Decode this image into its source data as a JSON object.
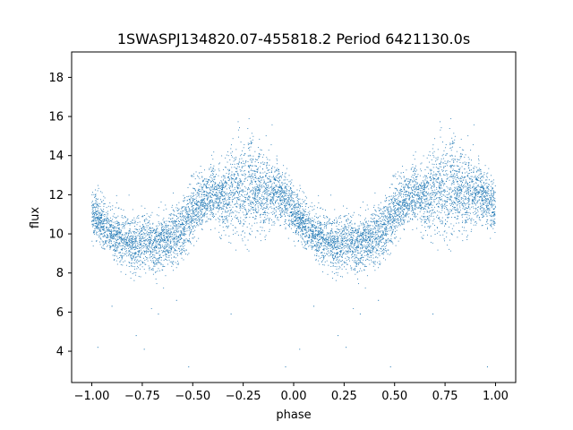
{
  "chart_data": {
    "type": "scatter",
    "title": "1SWASPJ134820.07-455818.2 Period 6421130.0s",
    "xlabel": "phase",
    "ylabel": "flux",
    "xlim": [
      -1.1,
      1.1
    ],
    "ylim": [
      2.4,
      19.3
    ],
    "x_ticks": [
      -1.0,
      -0.75,
      -0.5,
      -0.25,
      0.0,
      0.25,
      0.5,
      0.75,
      1.0
    ],
    "x_tick_labels": [
      "−1.00",
      "−0.75",
      "−0.50",
      "−0.25",
      "0.00",
      "0.25",
      "0.50",
      "0.75",
      "1.00"
    ],
    "y_ticks": [
      4,
      6,
      8,
      10,
      12,
      14,
      16,
      18
    ],
    "y_tick_labels": [
      "4",
      "6",
      "8",
      "10",
      "12",
      "14",
      "16",
      "18"
    ],
    "grid": false,
    "legend": "none",
    "marker_color": "#1f77b4",
    "phase_profile": {
      "phase": [
        0.0,
        0.05,
        0.1,
        0.15,
        0.2,
        0.25,
        0.3,
        0.35,
        0.4,
        0.45,
        0.5,
        0.55,
        0.6,
        0.65,
        0.7,
        0.75,
        0.8,
        0.85,
        0.9,
        0.95,
        1.0
      ],
      "median_flux": [
        11.0,
        10.5,
        10.0,
        9.7,
        9.5,
        9.6,
        9.4,
        9.5,
        9.8,
        10.2,
        11.2,
        11.6,
        12.1,
        11.8,
        12.3,
        12.5,
        12.3,
        12.1,
        12.2,
        11.8,
        11.3
      ],
      "spread": [
        0.8,
        0.8,
        0.8,
        0.9,
        0.9,
        0.9,
        0.9,
        0.9,
        0.9,
        1.0,
        1.0,
        0.9,
        1.0,
        1.0,
        1.4,
        1.6,
        1.6,
        1.4,
        1.0,
        0.9,
        0.8
      ]
    },
    "series": [
      {
        "x": [
          -1.0,
          -0.95,
          -0.9,
          -0.85,
          -0.8,
          -0.75,
          -0.7,
          -0.65,
          -0.6,
          -0.55,
          -0.5,
          -0.45,
          -0.4,
          -0.35,
          -0.3,
          -0.25,
          -0.2,
          -0.15,
          -0.1,
          -0.05,
          0.0,
          0.05,
          0.1,
          0.15,
          0.2,
          0.25,
          0.3,
          0.35,
          0.4,
          0.45,
          0.5,
          0.55,
          0.6,
          0.65,
          0.7,
          0.75,
          0.8,
          0.85,
          0.9,
          0.95,
          1.0
        ],
        "y": [
          11.3,
          11.0,
          10.5,
          10.0,
          9.7,
          9.5,
          9.6,
          9.4,
          9.5,
          9.8,
          10.2,
          11.2,
          11.6,
          12.1,
          11.8,
          12.3,
          12.5,
          12.3,
          12.1,
          12.2,
          11.8,
          11.0,
          10.5,
          10.0,
          9.7,
          9.5,
          9.6,
          9.4,
          9.5,
          9.8,
          10.2,
          11.2,
          11.6,
          12.1,
          11.8,
          12.3,
          12.5,
          12.3,
          12.1,
          12.2,
          11.3
        ]
      }
    ],
    "outliers": [
      {
        "x": -0.97,
        "y": 4.2
      },
      {
        "x": -0.78,
        "y": 4.8
      },
      {
        "x": -0.74,
        "y": 4.1
      },
      {
        "x": -0.67,
        "y": 5.9
      },
      {
        "x": -0.52,
        "y": 3.2
      },
      {
        "x": -0.31,
        "y": 5.9
      },
      {
        "x": -0.04,
        "y": 3.2
      },
      {
        "x": 0.03,
        "y": 4.1
      },
      {
        "x": 0.26,
        "y": 4.2
      },
      {
        "x": 0.33,
        "y": 5.9
      },
      {
        "x": 0.48,
        "y": 3.2
      },
      {
        "x": 0.69,
        "y": 5.9
      },
      {
        "x": 0.96,
        "y": 3.2
      },
      {
        "x": 0.22,
        "y": 4.8
      },
      {
        "x": -0.58,
        "y": 6.6
      },
      {
        "x": 0.42,
        "y": 6.6
      },
      {
        "x": -0.9,
        "y": 6.3
      },
      {
        "x": 0.1,
        "y": 6.3
      }
    ]
  }
}
